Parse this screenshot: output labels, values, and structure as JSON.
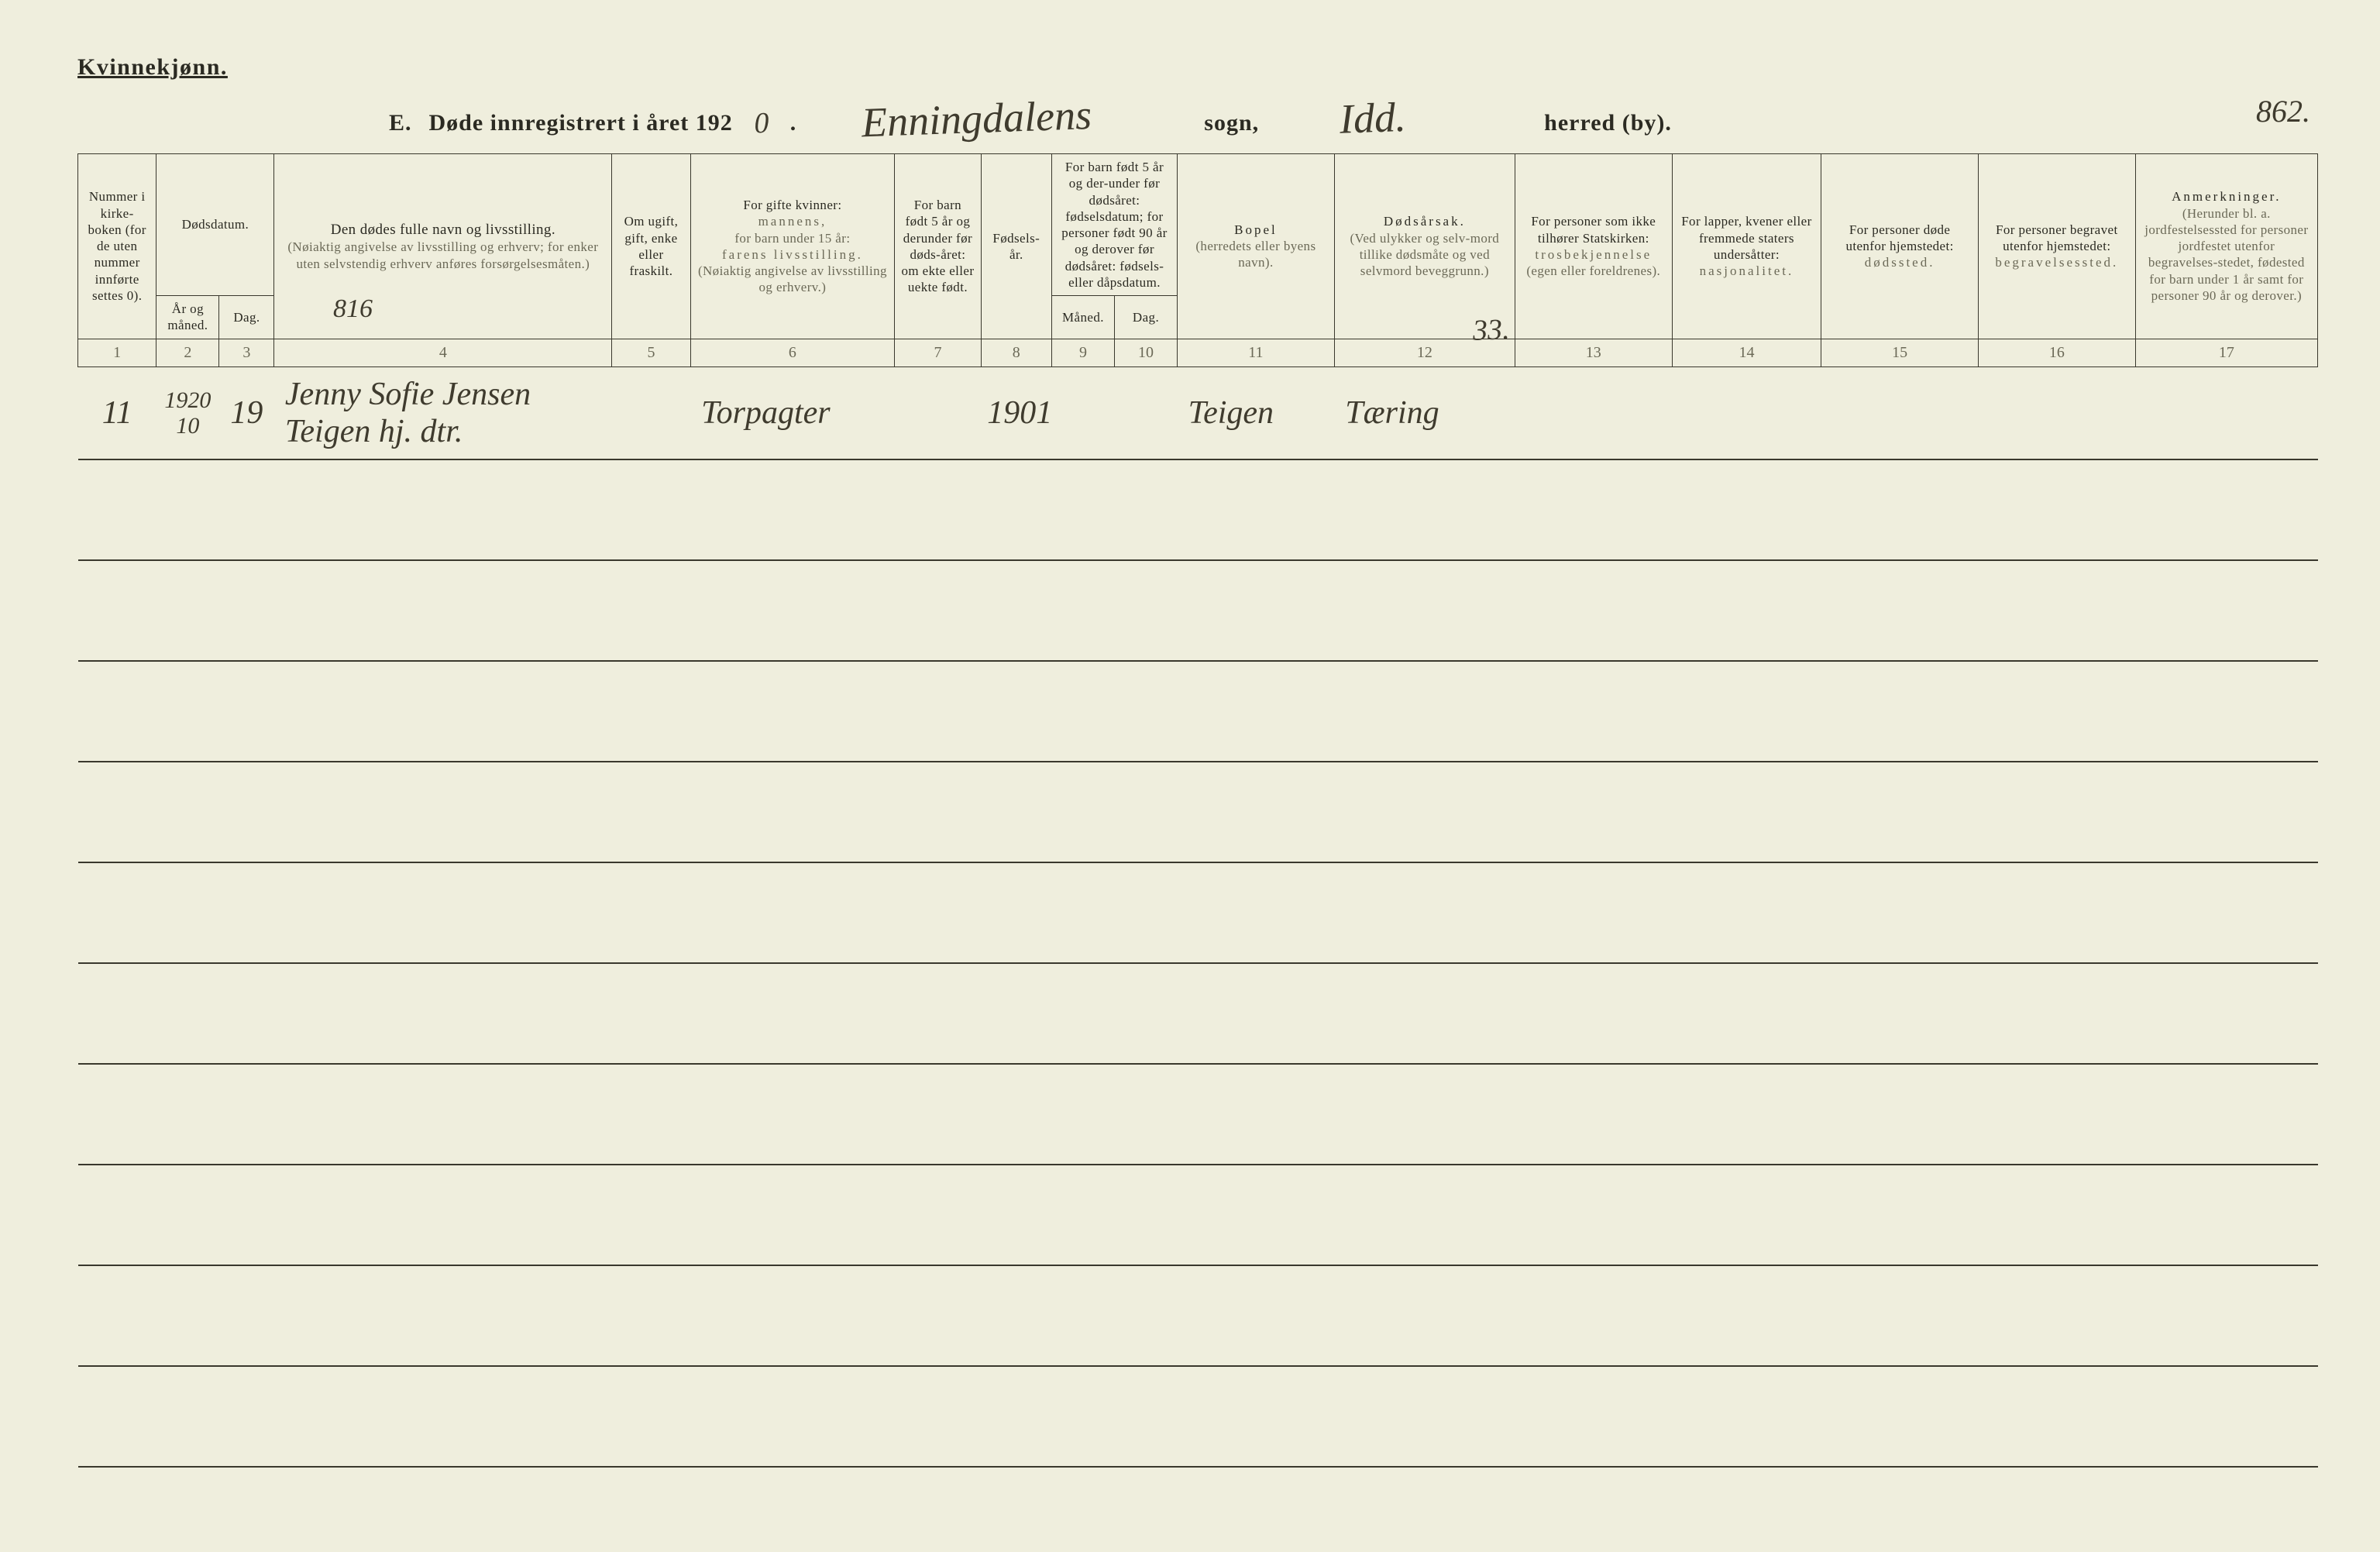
{
  "header": {
    "gender_label": "Kvinnekjønn.",
    "section_letter": "E.",
    "title_prefix": "Døde innregistrert i året 192",
    "year_digit": "0",
    "period": ".",
    "parish_hand": "Enningdalens",
    "parish_label": "sogn,",
    "district_hand": "Idd.",
    "district_label": "herred (by).",
    "page_number_hand": "862."
  },
  "columns": {
    "c1": "Nummer i kirke-boken (for de uten nummer innførte settes 0).",
    "c2_group": "Dødsdatum.",
    "c2a": "År og måned.",
    "c2b": "Dag.",
    "c4_l1": "Den dødes fulle navn og livsstilling.",
    "c4_l2": "(Nøiaktig angivelse av livsstilling og erhverv; for enker uten selvstendig erhverv anføres forsørgelsesmåten.)",
    "c5": "Om ugift, gift, enke eller fraskilt.",
    "c6_l1": "For gifte kvinner:",
    "c6_l2": "mannens,",
    "c6_l3": "for barn under 15 år:",
    "c6_l4": "farens livsstilling.",
    "c6_l5": "(Nøiaktig angivelse av livsstilling og erhverv.)",
    "c7": "For barn født 5 år og derunder før døds-året: om ekte eller uekte født.",
    "c8": "Fødsels-år.",
    "c9_group": "For barn født 5 år og der-under før dødsåret: fødselsdatum; for personer født 90 år og derover før dødsåret: fødsels- eller dåpsdatum.",
    "c9a": "Måned.",
    "c9b": "Dag.",
    "c11_l1": "Bopel",
    "c11_l2": "(herredets eller byens navn).",
    "c12_l1": "Dødsårsak.",
    "c12_l2": "(Ved ulykker og selv-mord tillike dødsmåte og ved selvmord beveggrunn.)",
    "c13_l1": "For personer som ikke tilhører Statskirken:",
    "c13_l2": "trosbekjennelse",
    "c13_l3": "(egen eller foreldrenes).",
    "c14_l1": "For lapper, kvener eller fremmede staters undersåtter:",
    "c14_l2": "nasjonalitet.",
    "c15_l1": "For personer døde utenfor hjemstedet:",
    "c15_l2": "dødssted.",
    "c16_l1": "For personer begravet utenfor hjemstedet:",
    "c16_l2": "begravelsessted.",
    "c17_l1": "Anmerkninger.",
    "c17_l2": "(Herunder bl. a. jordfestelsessted for personer jordfestet utenfor begravelses-stedet, fødested for barn under 1 år samt for personer 90 år og derover.)"
  },
  "colnums": [
    "1",
    "2",
    "3",
    "4",
    "5",
    "6",
    "7",
    "8",
    "9",
    "10",
    "11",
    "12",
    "13",
    "14",
    "15",
    "16",
    "17"
  ],
  "annotations": {
    "note_816": "816",
    "col12_corner": "33."
  },
  "rows": [
    {
      "num": "11",
      "year_month": "1920 10",
      "day": "19",
      "name": "Jenny Sofie Jensen Teigen  hj. dtr.",
      "status": "",
      "parent": "Torpagter",
      "legit": "",
      "birth_year": "1901",
      "bm": "",
      "bd": "",
      "residence": "Teigen",
      "cause": "Tæring",
      "c13": "",
      "c14": "",
      "c15": "",
      "c16": "",
      "c17": ""
    }
  ],
  "style": {
    "paper": "#efeedd",
    "ink": "#2b2a22",
    "rule": "#3a382d",
    "hand": "#3f3b2e",
    "header_fontsize_pt": 15,
    "hand_fontsize_pt": 32,
    "empty_row_count": 10
  }
}
